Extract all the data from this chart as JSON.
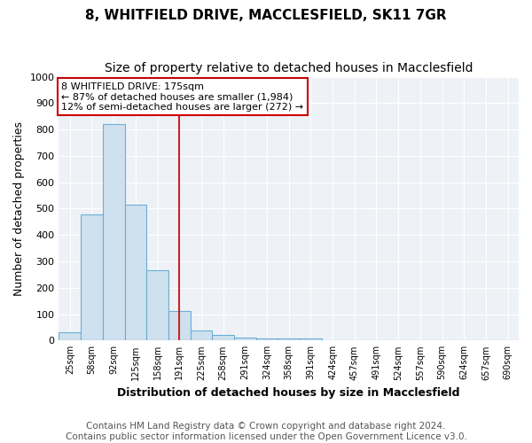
{
  "title1": "8, WHITFIELD DRIVE, MACCLESFIELD, SK11 7GR",
  "title2": "Size of property relative to detached houses in Macclesfield",
  "xlabel": "Distribution of detached houses by size in Macclesfield",
  "ylabel": "Number of detached properties",
  "annotation_title": "8 WHITFIELD DRIVE: 175sqm",
  "annotation_line2": "← 87% of detached houses are smaller (1,984)",
  "annotation_line3": "12% of semi-detached houses are larger (272) →",
  "footer1": "Contains HM Land Registry data © Crown copyright and database right 2024.",
  "footer2": "Contains public sector information licensed under the Open Government Licence v3.0.",
  "categories": [
    "25sqm",
    "58sqm",
    "92sqm",
    "125sqm",
    "158sqm",
    "191sqm",
    "225sqm",
    "258sqm",
    "291sqm",
    "324sqm",
    "358sqm",
    "391sqm",
    "424sqm",
    "457sqm",
    "491sqm",
    "524sqm",
    "557sqm",
    "590sqm",
    "624sqm",
    "657sqm",
    "690sqm"
  ],
  "values": [
    30,
    478,
    820,
    515,
    265,
    112,
    38,
    22,
    12,
    8,
    8,
    8,
    0,
    0,
    0,
    0,
    0,
    0,
    0,
    0,
    0
  ],
  "bar_color": "#cfe0ef",
  "bar_edge_color": "#6aafd4",
  "vline_x": 5,
  "vline_color": "#cc2222",
  "ylim": [
    0,
    1000
  ],
  "yticks": [
    0,
    100,
    200,
    300,
    400,
    500,
    600,
    700,
    800,
    900,
    1000
  ],
  "background_color": "#ffffff",
  "plot_bg_color": "#eef2f7",
  "annotation_box_color": "#ffffff",
  "annotation_box_edge": "#cc0000",
  "grid_color": "#ffffff",
  "title1_fontsize": 11,
  "title2_fontsize": 10,
  "xlabel_fontsize": 9,
  "ylabel_fontsize": 9,
  "tick_fontsize": 8,
  "xtick_fontsize": 7,
  "footer_fontsize": 7.5
}
